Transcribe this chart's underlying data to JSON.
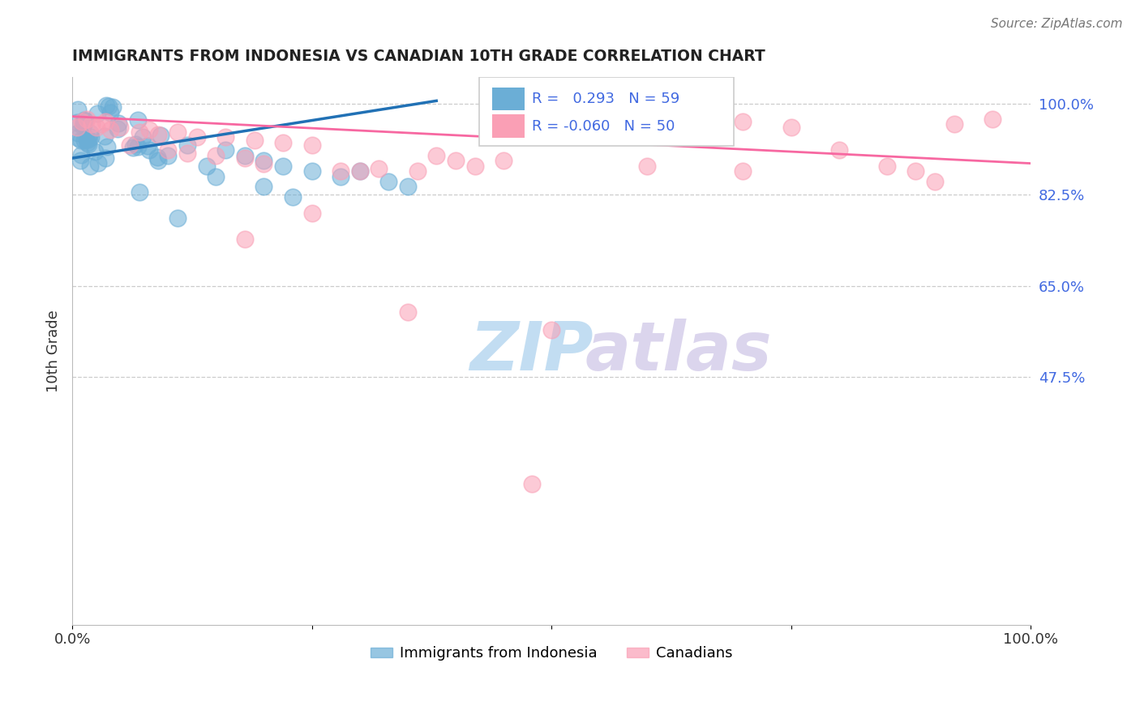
{
  "title": "IMMIGRANTS FROM INDONESIA VS CANADIAN 10TH GRADE CORRELATION CHART",
  "source": "Source: ZipAtlas.com",
  "ylabel": "10th Grade",
  "xlim": [
    0.0,
    1.0
  ],
  "ylim": [
    0.0,
    1.0
  ],
  "ytick_labels_right": [
    "100.0%",
    "82.5%",
    "65.0%",
    "47.5%"
  ],
  "ytick_positions_right": [
    1.0,
    0.825,
    0.65,
    0.475
  ],
  "blue_R": 0.293,
  "blue_N": 59,
  "pink_R": -0.06,
  "pink_N": 50,
  "blue_color": "#6baed6",
  "pink_color": "#fa9fb5",
  "blue_line_color": "#2171b5",
  "pink_line_color": "#f768a1",
  "legend_blue_label": "Immigrants from Indonesia",
  "legend_pink_label": "Canadians",
  "watermark_zip": "ZIP",
  "watermark_atlas": "atlas",
  "title_color": "#222222",
  "right_label_color": "#4169E1",
  "grid_color": "#cccccc",
  "blue_line_x": [
    0.0,
    0.38
  ],
  "blue_line_y": [
    0.895,
    1.005
  ],
  "pink_line_x": [
    0.0,
    1.0
  ],
  "pink_line_y": [
    0.975,
    0.885
  ]
}
